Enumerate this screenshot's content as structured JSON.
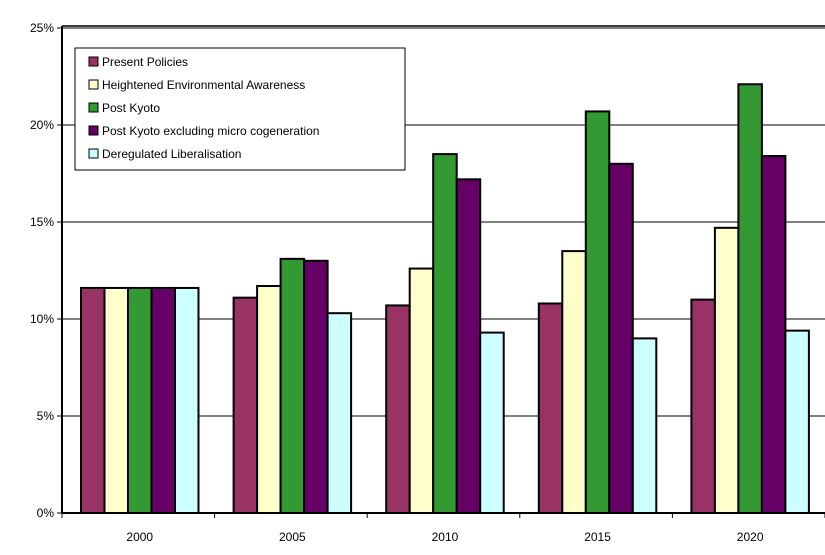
{
  "chart_data": {
    "type": "bar",
    "categories": [
      "2000",
      "2005",
      "2010",
      "2015",
      "2020"
    ],
    "series": [
      {
        "name": "Present Policies",
        "color": "#993366",
        "values": [
          11.6,
          11.1,
          10.7,
          10.8,
          11.0
        ]
      },
      {
        "name": "Heightened Environmental Awareness",
        "color": "#FFFFCC",
        "values": [
          11.6,
          11.7,
          12.6,
          13.5,
          14.7
        ]
      },
      {
        "name": "Post Kyoto",
        "color": "#339933",
        "values": [
          11.6,
          13.1,
          18.5,
          20.7,
          22.1
        ]
      },
      {
        "name": "Post Kyoto excluding micro cogeneration",
        "color": "#660066",
        "values": [
          11.6,
          13.0,
          17.2,
          18.0,
          18.4
        ]
      },
      {
        "name": "Deregulated Liberalisation",
        "color": "#CCFFFF",
        "values": [
          11.6,
          10.3,
          9.3,
          9.0,
          9.4
        ]
      }
    ],
    "ylim": [
      0,
      25
    ],
    "yticks": [
      "0%",
      "5%",
      "10%",
      "15%",
      "20%",
      "25%"
    ],
    "ytick_values": [
      0,
      5,
      10,
      15,
      20,
      25
    ],
    "grid": true,
    "legend_position": "top-left",
    "xlabel": "",
    "ylabel": "",
    "title": ""
  }
}
